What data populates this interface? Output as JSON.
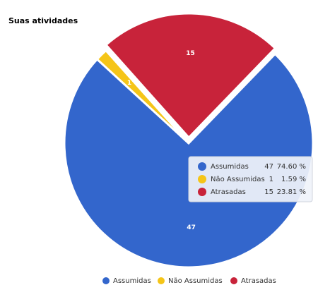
{
  "chart_data": {
    "type": "pie",
    "title": "Suas atividades",
    "categories": [
      "Assumidas",
      "Não Assumidas",
      "Atrasadas"
    ],
    "values": [
      47,
      1,
      15
    ],
    "colors": [
      "#3366cc",
      "#f5c518",
      "#c8233a"
    ],
    "percent_labels": [
      "74.60 %",
      "1.59 %",
      "23.81 %"
    ],
    "legend": "bottom"
  }
}
